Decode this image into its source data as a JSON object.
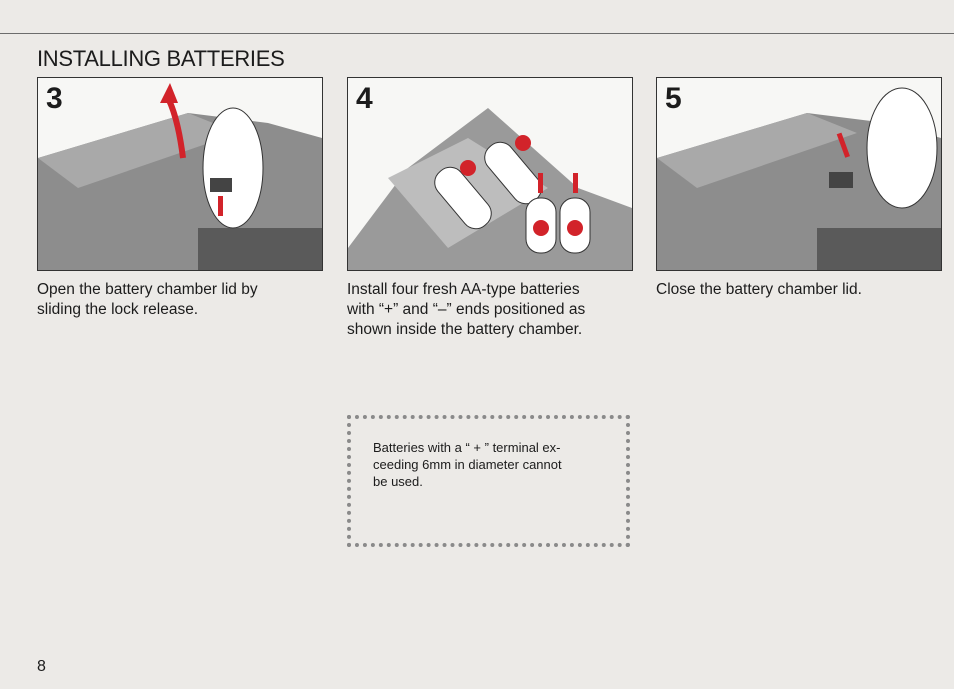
{
  "header": {
    "title": "INSTALLING BATTERIES"
  },
  "steps": [
    {
      "number": "3",
      "caption": [
        "Open the battery chamber lid by",
        "sliding the lock release."
      ]
    },
    {
      "number": "4",
      "caption": [
        "Install four fresh AA-type batteries",
        "with “+” and “–” ends positioned as",
        "shown inside the battery chamber."
      ]
    },
    {
      "number": "5",
      "caption": [
        "Close the battery chamber lid."
      ]
    }
  ],
  "note": {
    "lines": [
      "Batteries with a “ + ” terminal ex-",
      "ceeding 6mm in diameter cannot",
      "be used."
    ]
  },
  "footer": {
    "page_number": "8"
  }
}
